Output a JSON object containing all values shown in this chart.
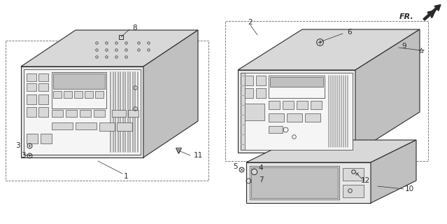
{
  "bg_color": "#ffffff",
  "lc": "#2a2a2a",
  "lc_light": "#888888",
  "lw_main": 0.8,
  "lw_thin": 0.5,
  "lw_detail": 0.4,
  "face_white": "#f5f5f5",
  "face_light": "#e8e8e8",
  "face_med": "#d8d8d8",
  "face_dark": "#c0c0c0",
  "face_darker": "#a8a8a8",
  "hatch_color": "#bbbbbb",
  "fr_text": "FR.",
  "dashed_box_color": "#666666"
}
